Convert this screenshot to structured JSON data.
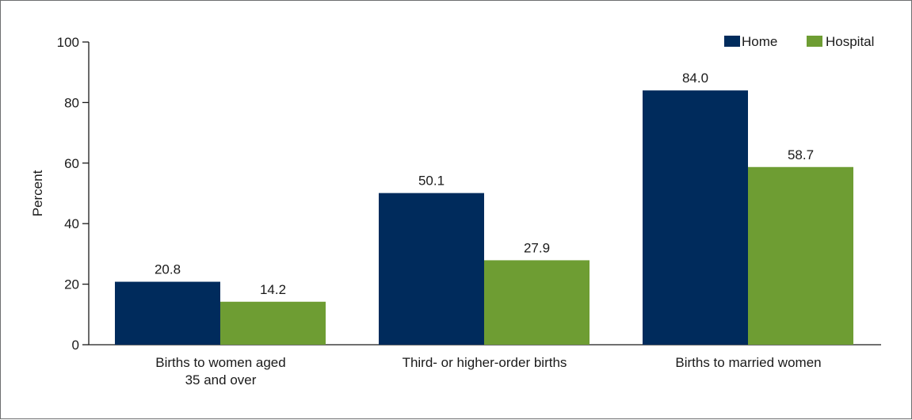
{
  "chart_data": {
    "type": "bar",
    "categories": [
      [
        "Births to women aged",
        "35 and over"
      ],
      [
        "Third- or higher-order births"
      ],
      [
        "Births to married women"
      ]
    ],
    "series": [
      {
        "name": "Home",
        "values": [
          20.8,
          50.1,
          84.0
        ],
        "color": "#002b5c"
      },
      {
        "name": "Hospital",
        "values": [
          14.2,
          27.9,
          58.7
        ],
        "color": "#6e9d33"
      }
    ],
    "data_labels": [
      [
        "20.8",
        "50.1",
        "84.0"
      ],
      [
        "14.2",
        "27.9",
        "58.7"
      ]
    ],
    "ylabel": "Percent",
    "xlabel": "",
    "ylim": [
      0,
      100
    ],
    "yticks": [
      0,
      20,
      40,
      60,
      80,
      100
    ],
    "ytick_labels": [
      "0",
      "20",
      "40",
      "60",
      "80",
      "100"
    ],
    "grid": false,
    "legend_position": "top-right"
  }
}
